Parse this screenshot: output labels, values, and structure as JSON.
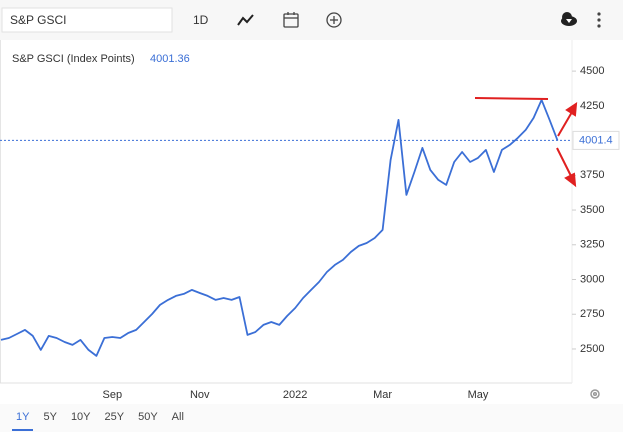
{
  "toolbar": {
    "search": "S&P GSCI",
    "interval": "1D"
  },
  "ranges": [
    "1Y",
    "5Y",
    "10Y",
    "25Y",
    "50Y",
    "All"
  ],
  "chart_data": {
    "type": "line",
    "legend_name": "S&P GSCI (Index Points)",
    "current_value": 4001.36,
    "current_value_label": "4001.4",
    "categories": [
      null,
      null,
      null,
      null,
      null,
      null,
      null,
      null,
      null,
      null,
      null,
      null,
      null,
      null,
      "Sep",
      null,
      null,
      null,
      null,
      null,
      null,
      null,
      null,
      null,
      null,
      "Nov",
      null,
      null,
      null,
      null,
      null,
      null,
      null,
      null,
      null,
      null,
      null,
      "2022",
      null,
      null,
      null,
      null,
      null,
      null,
      null,
      null,
      null,
      null,
      "Mar",
      null,
      null,
      null,
      null,
      null,
      null,
      null,
      null,
      null,
      null,
      null,
      "May",
      null,
      null,
      null,
      null,
      null,
      null,
      null,
      null,
      null,
      null
    ],
    "series": [
      {
        "name": "S&P GSCI",
        "color": "#3b6fd6",
        "values": [
          2565,
          2579,
          2608,
          2637,
          2594,
          2493,
          2594,
          2579,
          2550,
          2529,
          2565,
          2493,
          2450,
          2579,
          2586,
          2579,
          2615,
          2637,
          2694,
          2752,
          2817,
          2853,
          2882,
          2896,
          2925,
          2903,
          2882,
          2853,
          2867,
          2853,
          2874,
          2601,
          2622,
          2673,
          2694,
          2673,
          2738,
          2795,
          2867,
          2925,
          2982,
          3054,
          3105,
          3141,
          3198,
          3242,
          3263,
          3299,
          3357,
          3861,
          4149,
          3609,
          3774,
          3947,
          3789,
          3717,
          3681,
          3846,
          3918,
          3846,
          3875,
          3933,
          3774,
          3933,
          3969,
          4019,
          4077,
          4163,
          4293,
          4149,
          4001.36
        ]
      }
    ],
    "ylim": [
      2255,
      4580
    ],
    "yticks": [
      2500,
      2750,
      3000,
      3250,
      3500,
      3750,
      4250,
      4500
    ],
    "grid": false
  }
}
